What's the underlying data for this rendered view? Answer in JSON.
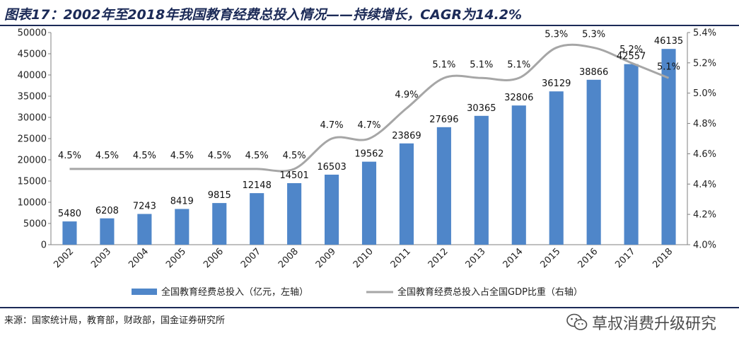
{
  "header": {
    "title": "图表17：2002年至2018年我国教育经费总投入情况——持续增长，CAGR为14.2%"
  },
  "footer": {
    "source": "来源：国家统计局，教育部，财政部，国金证券研究所",
    "watermark": "草叔消费升级研究",
    "watermark_icon": "wechat-icon"
  },
  "colors": {
    "bar": "#4f86c9",
    "line": "#a6a6a6",
    "title": "#1b2a57"
  },
  "chart_data": {
    "type": "bar",
    "categories": [
      "2002",
      "2003",
      "2004",
      "2005",
      "2006",
      "2007",
      "2008",
      "2009",
      "2010",
      "2011",
      "2012",
      "2013",
      "2014",
      "2015",
      "2016",
      "2017",
      "2018"
    ],
    "series": [
      {
        "name": "全国教育经费总投入（亿元，左轴）",
        "type": "bar",
        "axis": "left",
        "values": [
          5480,
          6208,
          7243,
          8419,
          9815,
          12148,
          14501,
          16503,
          19562,
          23869,
          27696,
          30365,
          32806,
          36129,
          38866,
          42557,
          46135
        ],
        "labels": [
          "5480",
          "6208",
          "7243",
          "8419",
          "9815",
          "12148",
          "14501",
          "16503",
          "19562",
          "23869",
          "27696",
          "30365",
          "32806",
          "36129",
          "38866",
          "42557",
          "46135"
        ]
      },
      {
        "name": "全国教育经费总投入占全国GDP比重（右轴）",
        "type": "line",
        "axis": "right",
        "values": [
          4.5,
          4.5,
          4.5,
          4.5,
          4.5,
          4.5,
          4.5,
          4.7,
          4.7,
          4.9,
          5.1,
          5.1,
          5.1,
          5.3,
          5.3,
          5.2,
          5.1
        ],
        "labels": [
          "4.5%",
          "4.5%",
          "4.5%",
          "4.5%",
          "4.5%",
          "4.5%",
          "4.5%",
          "4.7%",
          "4.7%",
          "4.9%",
          "5.1%",
          "5.1%",
          "5.1%",
          "5.3%",
          "5.3%",
          "5.2%",
          "5.1%"
        ]
      }
    ],
    "ylim": [
      0,
      50000
    ],
    "yticks": [
      "0",
      "5000",
      "10000",
      "15000",
      "20000",
      "25000",
      "30000",
      "35000",
      "40000",
      "45000",
      "50000"
    ],
    "y2lim": [
      4.0,
      5.4
    ],
    "y2ticks": [
      "4.0%",
      "4.2%",
      "4.4%",
      "4.6%",
      "4.8%",
      "5.0%",
      "5.2%",
      "5.4%"
    ],
    "legend_position": "bottom",
    "grid": false
  }
}
